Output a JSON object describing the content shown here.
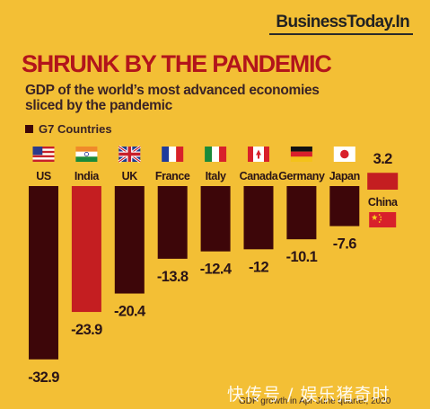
{
  "brand": "BusinessToday.In",
  "headline": "SHRUNK BY THE PANDEMIC",
  "subtitle": "GDP of the world’s most advanced economies sliced by the pandemic",
  "legend_label": "G7 Countries",
  "colors": {
    "background": "#f3bf35",
    "g7": "#3d0609",
    "highlight": "#c41e21",
    "china": "#c41e21",
    "headline": "#b2151b"
  },
  "footnote": "GDP growth in Apr-June quarter, 2020",
  "watermark": "快传号 / 娱乐猪奇时",
  "chart_data": {
    "type": "bar",
    "title": "SHRUNK BY THE PANDEMIC",
    "categories": [
      "US",
      "India",
      "UK",
      "France",
      "Italy",
      "Canada",
      "Germany",
      "Japan",
      "China"
    ],
    "values": [
      -32.9,
      -23.9,
      -20.4,
      -13.8,
      -12.4,
      -12,
      -10.1,
      -7.6,
      3.2
    ],
    "value_labels": [
      "-32.9",
      "-23.9",
      "-20.4",
      "-13.8",
      "-12.4",
      "-12",
      "-10.1",
      "-7.6",
      "3.2"
    ],
    "flags": [
      "us-flag",
      "india-flag",
      "uk-flag",
      "france-flag",
      "italy-flag",
      "canada-flag",
      "germany-flag",
      "japan-flag",
      "china-flag"
    ],
    "group": [
      "G7",
      "other",
      "G7",
      "G7",
      "G7",
      "G7",
      "G7",
      "G7",
      "other"
    ],
    "legend": [
      "G7 Countries"
    ],
    "legend_position": "top-left",
    "grid": false
  }
}
